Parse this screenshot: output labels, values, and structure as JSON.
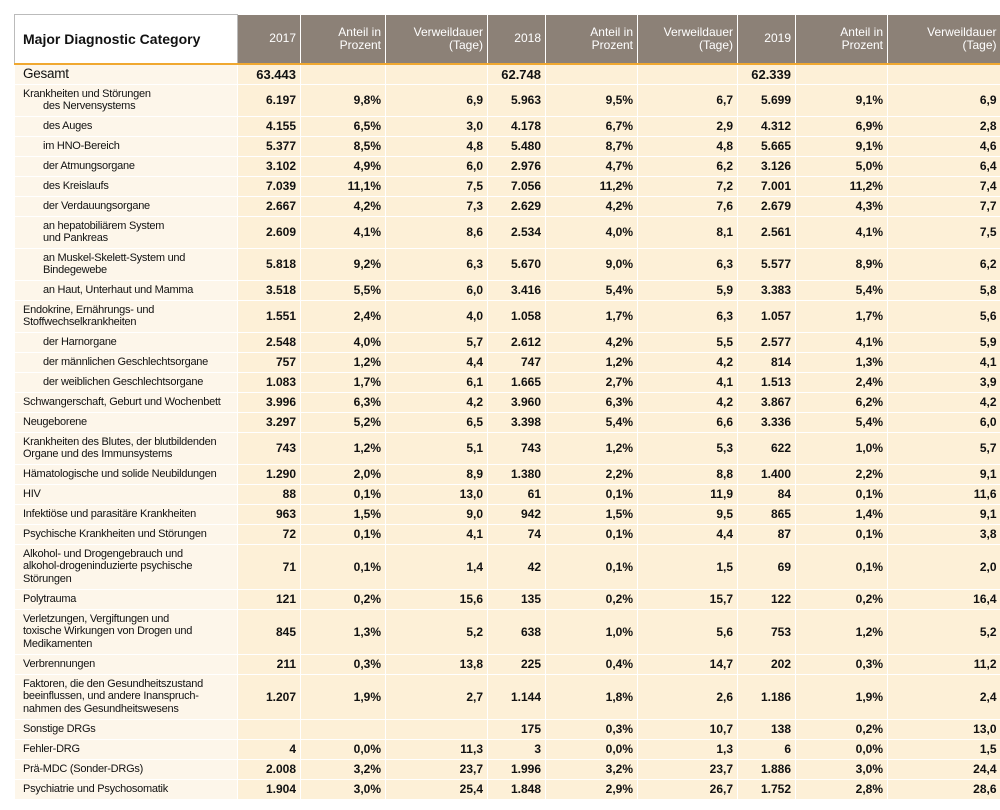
{
  "header": {
    "label": "Major Diagnostic Category",
    "columns": [
      "2017",
      "Anteil in Prozent",
      "Verweildauer (Tage)",
      "2018",
      "Anteil in Prozent",
      "Verweildauer (Tage)",
      "2019",
      "Anteil in Prozent",
      "Verweildauer (Tage)"
    ]
  },
  "rows": [
    {
      "lines": [
        "Gesamt"
      ],
      "cells": [
        "63.443",
        null,
        null,
        "62.748",
        null,
        null,
        "62.339",
        null,
        null
      ]
    },
    {
      "lines": [
        "Krankheiten und Störungen",
        "des Nervensystems"
      ],
      "cells": [
        "6.197",
        "9,8%",
        "6,9",
        "5.963",
        "9,5%",
        "6,7",
        "5.699",
        "9,1%",
        "6,9"
      ]
    },
    {
      "lines": [
        "des Auges"
      ],
      "cells": [
        "4.155",
        "6,5%",
        "3,0",
        "4.178",
        "6,7%",
        "2,9",
        "4.312",
        "6,9%",
        "2,8"
      ]
    },
    {
      "lines": [
        "im HNO-Bereich"
      ],
      "cells": [
        "5.377",
        "8,5%",
        "4,8",
        "5.480",
        "8,7%",
        "4,8",
        "5.665",
        "9,1%",
        "4,6"
      ]
    },
    {
      "lines": [
        "der Atmungsorgane"
      ],
      "cells": [
        "3.102",
        "4,9%",
        "6,0",
        "2.976",
        "4,7%",
        "6,2",
        "3.126",
        "5,0%",
        "6,4"
      ]
    },
    {
      "lines": [
        "des Kreislaufs"
      ],
      "cells": [
        "7.039",
        "11,1%",
        "7,5",
        "7.056",
        "11,2%",
        "7,2",
        "7.001",
        "11,2%",
        "7,4"
      ]
    },
    {
      "lines": [
        "der Verdauungsorgane"
      ],
      "cells": [
        "2.667",
        "4,2%",
        "7,3",
        "2.629",
        "4,2%",
        "7,6",
        "2.679",
        "4,3%",
        "7,7"
      ]
    },
    {
      "lines": [
        "an hepatobiliärem System",
        "und Pankreas"
      ],
      "cells": [
        "2.609",
        "4,1%",
        "8,6",
        "2.534",
        "4,0%",
        "8,1",
        "2.561",
        "4,1%",
        "7,5"
      ]
    },
    {
      "lines": [
        "an Muskel-Skelett-System und",
        "Bindegewebe"
      ],
      "cells": [
        "5.818",
        "9,2%",
        "6,3",
        "5.670",
        "9,0%",
        "6,3",
        "5.577",
        "8,9%",
        "6,2"
      ]
    },
    {
      "lines": [
        "an Haut, Unterhaut und Mamma"
      ],
      "cells": [
        "3.518",
        "5,5%",
        "6,0",
        "3.416",
        "5,4%",
        "5,9",
        "3.383",
        "5,4%",
        "5,8"
      ]
    },
    {
      "lines": [
        "Endokrine, Ernährungs- und",
        "Stoffwechselkrankheiten"
      ],
      "cells": [
        "1.551",
        "2,4%",
        "4,0",
        "1.058",
        "1,7%",
        "6,3",
        "1.057",
        "1,7%",
        "5,6"
      ]
    },
    {
      "lines": [
        "der Harnorgane"
      ],
      "cells": [
        "2.548",
        "4,0%",
        "5,7",
        "2.612",
        "4,2%",
        "5,5",
        "2.577",
        "4,1%",
        "5,9"
      ]
    },
    {
      "lines": [
        "der männlichen Geschlechtsorgane"
      ],
      "cells": [
        "757",
        "1,2%",
        "4,4",
        "747",
        "1,2%",
        "4,2",
        "814",
        "1,3%",
        "4,1"
      ]
    },
    {
      "lines": [
        "der weiblichen Geschlechtsorgane"
      ],
      "cells": [
        "1.083",
        "1,7%",
        "6,1",
        "1.665",
        "2,7%",
        "4,1",
        "1.513",
        "2,4%",
        "3,9"
      ]
    },
    {
      "lines": [
        "Schwangerschaft, Geburt und Wochenbett"
      ],
      "cells": [
        "3.996",
        "6,3%",
        "4,2",
        "3.960",
        "6,3%",
        "4,2",
        "3.867",
        "6,2%",
        "4,2"
      ]
    },
    {
      "lines": [
        "Neugeborene"
      ],
      "cells": [
        "3.297",
        "5,2%",
        "6,5",
        "3.398",
        "5,4%",
        "6,6",
        "3.336",
        "5,4%",
        "6,0"
      ]
    },
    {
      "lines": [
        "Krankheiten des Blutes, der blutbildenden",
        "Organe und des Immunsystems"
      ],
      "cells": [
        "743",
        "1,2%",
        "5,1",
        "743",
        "1,2%",
        "5,3",
        "622",
        "1,0%",
        "5,7"
      ]
    },
    {
      "lines": [
        "Hämatologische und solide Neubildungen"
      ],
      "cells": [
        "1.290",
        "2,0%",
        "8,9",
        "1.380",
        "2,2%",
        "8,8",
        "1.400",
        "2,2%",
        "9,1"
      ]
    },
    {
      "lines": [
        "HIV"
      ],
      "cells": [
        "88",
        "0,1%",
        "13,0",
        "61",
        "0,1%",
        "11,9",
        "84",
        "0,1%",
        "11,6"
      ]
    },
    {
      "lines": [
        "Infektiöse und parasitäre Krankheiten"
      ],
      "cells": [
        "963",
        "1,5%",
        "9,0",
        "942",
        "1,5%",
        "9,5",
        "865",
        "1,4%",
        "9,1"
      ]
    },
    {
      "lines": [
        "Psychische Krankheiten und Störungen"
      ],
      "cells": [
        "72",
        "0,1%",
        "4,1",
        "74",
        "0,1%",
        "4,4",
        "87",
        "0,1%",
        "3,8"
      ]
    },
    {
      "lines": [
        "Alkohol- und Drogengebrauch und",
        "alkohol-drogeninduzierte psychische",
        "Störungen"
      ],
      "cells": [
        "71",
        "0,1%",
        "1,4",
        "42",
        "0,1%",
        "1,5",
        "69",
        "0,1%",
        "2,0"
      ]
    },
    {
      "lines": [
        "Polytrauma"
      ],
      "cells": [
        "121",
        "0,2%",
        "15,6",
        "135",
        "0,2%",
        "15,7",
        "122",
        "0,2%",
        "16,4"
      ]
    },
    {
      "lines": [
        "Verletzungen, Vergiftungen und",
        "toxische Wirkungen von Drogen und",
        "Medikamenten"
      ],
      "cells": [
        "845",
        "1,3%",
        "5,2",
        "638",
        "1,0%",
        "5,6",
        "753",
        "1,2%",
        "5,2"
      ]
    },
    {
      "lines": [
        "Verbrennungen"
      ],
      "cells": [
        "211",
        "0,3%",
        "13,8",
        "225",
        "0,4%",
        "14,7",
        "202",
        "0,3%",
        "11,2"
      ]
    },
    {
      "lines": [
        "Faktoren, die den Gesundheitszustand",
        "beeinflussen, und andere Inanspruch-",
        "nahmen des Gesundheitswesens"
      ],
      "cells": [
        "1.207",
        "1,9%",
        "2,7",
        "1.144",
        "1,8%",
        "2,6",
        "1.186",
        "1,9%",
        "2,4"
      ]
    },
    {
      "lines": [
        "Sonstige DRGs"
      ],
      "cells": [
        null,
        null,
        null,
        "175",
        "0,3%",
        "10,7",
        "138",
        "0,2%",
        "13,0"
      ]
    },
    {
      "lines": [
        "Fehler-DRG"
      ],
      "cells": [
        "4",
        "0,0%",
        "11,3",
        "3",
        "0,0%",
        "1,3",
        "6",
        "0,0%",
        "1,5"
      ]
    },
    {
      "lines": [
        "Prä-MDC (Sonder-DRGs)"
      ],
      "cells": [
        "2.008",
        "3,2%",
        "23,7",
        "1.996",
        "3,2%",
        "23,7",
        "1.886",
        "3,0%",
        "24,4"
      ]
    },
    {
      "lines": [
        "Psychiatrie und Psychosomatik"
      ],
      "cells": [
        "1.904",
        "3,0%",
        "25,4",
        "1.848",
        "2,9%",
        "26,7",
        "1.752",
        "2,8%",
        "28,6"
      ]
    }
  ]
}
